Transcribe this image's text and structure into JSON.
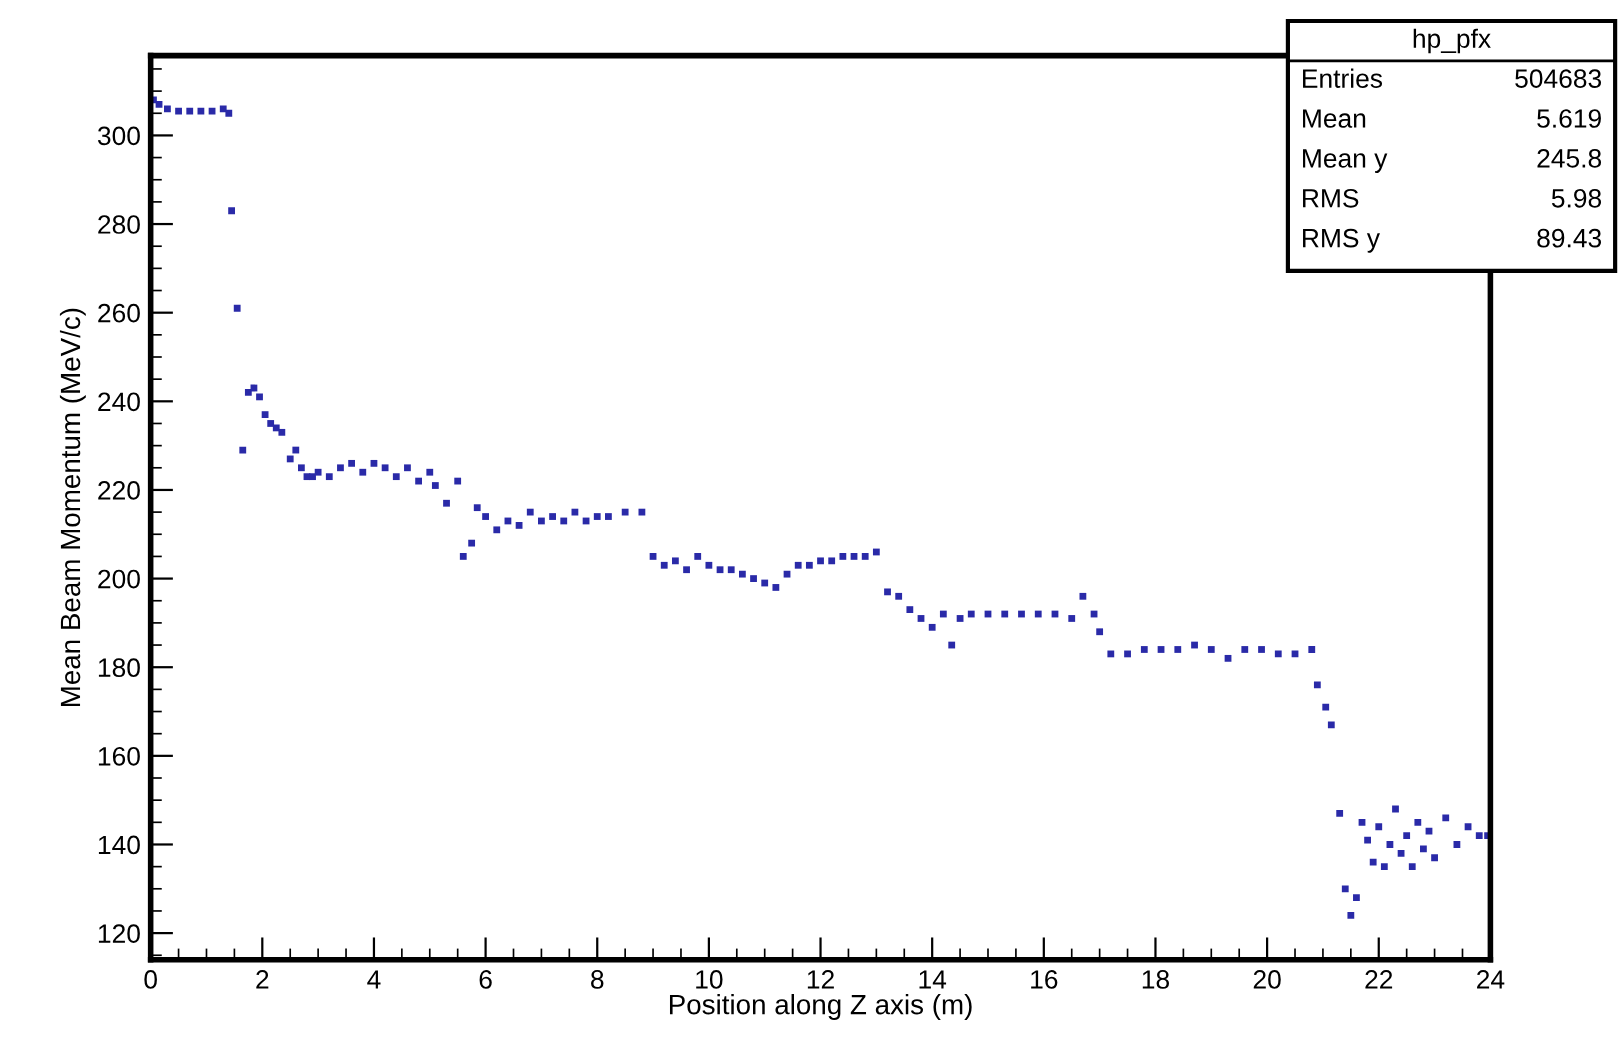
{
  "chart_data": {
    "type": "scatter",
    "xlabel": "Position along Z axis (m)",
    "ylabel": "Mean Beam Momentum (MeV/c)",
    "annotations": [
      "hp_pfx",
      "Entries 504683",
      "Mean 5.619",
      "Mean y 245.8",
      "RMS 5.98",
      "RMS y 89.43"
    ],
    "xlim": [
      0,
      24
    ],
    "xticks": [
      0,
      2,
      4,
      6,
      8,
      10,
      12,
      14,
      16,
      18,
      20,
      22,
      24
    ],
    "ylim": [
      114,
      318
    ],
    "yticks": [
      120,
      140,
      160,
      180,
      200,
      220,
      240,
      260,
      280,
      300
    ],
    "grid": false,
    "legend": false,
    "marker": "square",
    "series": [
      {
        "color": "#2a2aa8",
        "x": [
          0.05,
          0.15,
          0.3,
          0.5,
          0.7,
          0.9,
          1.1,
          1.3,
          1.4,
          1.45,
          1.55,
          1.65,
          1.75,
          1.85,
          1.95,
          2.05,
          2.15,
          2.25,
          2.35,
          2.5,
          2.6,
          2.7,
          2.8,
          2.9,
          3.0,
          3.2,
          3.4,
          3.6,
          3.8,
          4.0,
          4.2,
          4.4,
          4.6,
          4.8,
          5.0,
          5.1,
          5.3,
          5.5,
          5.6,
          5.75,
          5.85,
          6.0,
          6.2,
          6.4,
          6.6,
          6.8,
          7.0,
          7.2,
          7.4,
          7.6,
          7.8,
          8.0,
          8.2,
          8.5,
          8.8,
          9.0,
          9.2,
          9.4,
          9.6,
          9.8,
          10.0,
          10.2,
          10.4,
          10.6,
          10.8,
          11.0,
          11.2,
          11.4,
          11.6,
          11.8,
          12.0,
          12.2,
          12.4,
          12.6,
          12.8,
          13.0,
          13.2,
          13.4,
          13.6,
          13.8,
          14.0,
          14.2,
          14.35,
          14.5,
          14.7,
          15.0,
          15.3,
          15.6,
          15.9,
          16.2,
          16.5,
          16.7,
          16.9,
          17.0,
          17.2,
          17.5,
          17.8,
          18.1,
          18.4,
          18.7,
          19.0,
          19.3,
          19.6,
          19.9,
          20.2,
          20.5,
          20.8,
          20.9,
          21.05,
          21.15,
          21.3,
          21.4,
          21.5,
          21.6,
          21.7,
          21.8,
          21.9,
          22.0,
          22.1,
          22.2,
          22.3,
          22.4,
          22.5,
          22.6,
          22.7,
          22.8,
          22.9,
          23.0,
          23.2,
          23.4,
          23.6,
          23.8,
          23.95
        ],
        "values": [
          308,
          307,
          306,
          305.5,
          305.5,
          305.5,
          305.5,
          306,
          305,
          283,
          261,
          229,
          242,
          243,
          241,
          237,
          235,
          234,
          233,
          227,
          229,
          225,
          223,
          223,
          224,
          223,
          225,
          226,
          224,
          226,
          225,
          223,
          225,
          222,
          224,
          221,
          217,
          222,
          205,
          208,
          216,
          214,
          211,
          213,
          212,
          215,
          213,
          214,
          213,
          215,
          213,
          214,
          214,
          215,
          215,
          205,
          203,
          204,
          202,
          205,
          203,
          202,
          202,
          201,
          200,
          199,
          198,
          201,
          203,
          203,
          204,
          204,
          205,
          205,
          205,
          206,
          197,
          196,
          193,
          191,
          189,
          192,
          185,
          191,
          192,
          192,
          192,
          192,
          192,
          192,
          191,
          196,
          192,
          188,
          183,
          183,
          184,
          184,
          184,
          185,
          184,
          182,
          184,
          184,
          183,
          183,
          184,
          176,
          171,
          167,
          147,
          130,
          124,
          128,
          145,
          141,
          136,
          144,
          135,
          140,
          148,
          138,
          142,
          135,
          145,
          139,
          143,
          137,
          146,
          140,
          144,
          142,
          142
        ]
      }
    ]
  }
}
